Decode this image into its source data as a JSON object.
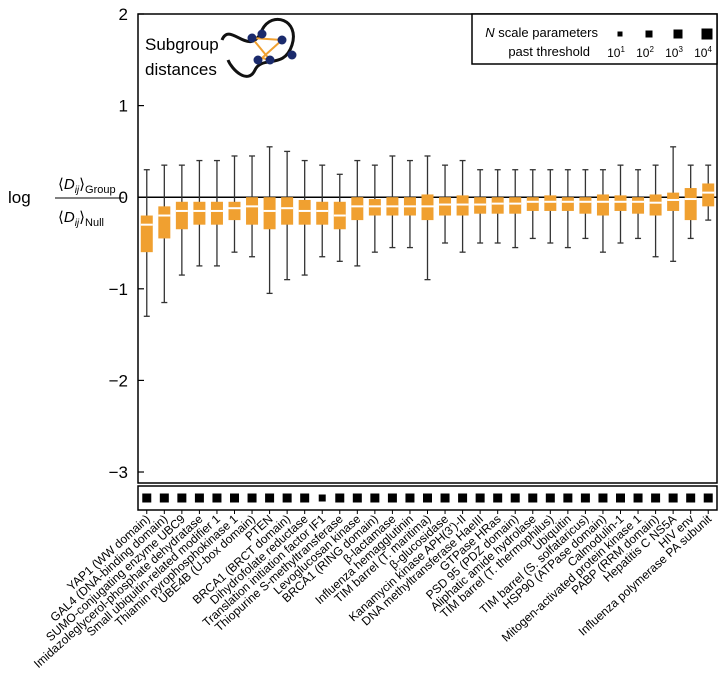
{
  "chart_data": {
    "type": "box",
    "categories": [
      "YAP1 (WW domain)",
      "GAL4 (DNA-binding domain)",
      "SUMO-conjugating enzyme UBC9",
      "Imidazoleglycerol-phosphate dehydratase",
      "Small ubiquitin-related modifier 1",
      "Thiamin pyrophosphokinase 1",
      "UBE4B (U-box domain)",
      "PTEN",
      "BRCA1 (BRCT domain)",
      "Dihydrofolate reductase",
      "Translation initiation factor IF1",
      "Thiopurine S-methyltransferase",
      "Levoglucosan kinase",
      "BRCA1 (RING domain)",
      "β-lactamase",
      "Influenza hemagglutinin",
      "TIM barrel (T. maritima)",
      "β-glucosidase",
      "Kanamycin kinase APH(3')-II",
      "DNA methyltransferase HaeIII",
      "GTPase HRas",
      "PSD 95 (PDZ domain)",
      "Aliphatic amide hydrolase",
      "TIM barrel (T. thermophilus)",
      "Ubiquitin",
      "TIM barrel (S. solfataricus)",
      "HSP90 (ATPase domain)",
      "Calmodulin-1",
      "Mitogen-activated protein kinase 1",
      "PABP (RRM domain)",
      "Hepatitis C NS5A",
      "HIV env",
      "Influenza polymerase PA subunit"
    ],
    "whisker_low": [
      -1.3,
      -1.15,
      -0.85,
      -0.75,
      -0.75,
      -0.6,
      -0.65,
      -1.05,
      -0.9,
      -0.85,
      -0.65,
      -0.7,
      -0.75,
      -0.6,
      -0.55,
      -0.55,
      -0.9,
      -0.5,
      -0.6,
      -0.5,
      -0.5,
      -0.55,
      -0.45,
      -0.5,
      -0.55,
      -0.45,
      -0.6,
      -0.5,
      -0.45,
      -0.65,
      -0.7,
      -0.45,
      -0.25
    ],
    "q1": [
      -0.6,
      -0.45,
      -0.35,
      -0.3,
      -0.3,
      -0.25,
      -0.3,
      -0.35,
      -0.3,
      -0.3,
      -0.3,
      -0.35,
      -0.25,
      -0.2,
      -0.2,
      -0.2,
      -0.25,
      -0.2,
      -0.2,
      -0.18,
      -0.18,
      -0.18,
      -0.15,
      -0.15,
      -0.15,
      -0.18,
      -0.2,
      -0.15,
      -0.18,
      -0.2,
      -0.15,
      -0.25,
      -0.1
    ],
    "median": [
      -0.3,
      -0.2,
      -0.15,
      -0.15,
      -0.15,
      -0.12,
      -0.1,
      -0.15,
      -0.12,
      -0.15,
      -0.15,
      -0.2,
      -0.1,
      -0.1,
      -0.1,
      -0.1,
      -0.1,
      -0.08,
      -0.08,
      -0.08,
      -0.07,
      -0.07,
      -0.05,
      -0.05,
      -0.05,
      -0.05,
      -0.05,
      -0.05,
      -0.05,
      -0.06,
      -0.03,
      -0.02,
      0.05
    ],
    "q3": [
      -0.2,
      -0.1,
      -0.05,
      -0.05,
      -0.05,
      -0.05,
      0,
      0,
      0,
      -0.03,
      -0.05,
      -0.05,
      0,
      -0.02,
      0,
      0,
      0.03,
      0,
      0.02,
      0,
      0,
      0,
      0,
      0.02,
      0,
      0,
      0.03,
      0.02,
      0,
      0.03,
      0.05,
      0.1,
      0.15
    ],
    "whisker_high": [
      0.3,
      0.35,
      0.35,
      0.4,
      0.4,
      0.45,
      0.45,
      0.55,
      0.5,
      0.4,
      0.35,
      0.25,
      0.4,
      0.35,
      0.45,
      0.4,
      0.45,
      0.35,
      0.4,
      0.3,
      0.3,
      0.3,
      0.3,
      0.3,
      0.3,
      0.3,
      0.3,
      0.35,
      0.3,
      0.35,
      0.55,
      0.35,
      0.35
    ],
    "n_params": [
      1000,
      1000,
      1000,
      1000,
      1000,
      1000,
      1000,
      1000,
      1000,
      1000,
      100,
      1000,
      1000,
      1000,
      1000,
      1000,
      1000,
      1000,
      1000,
      1000,
      1000,
      1000,
      1000,
      1000,
      1000,
      1000,
      1000,
      1000,
      1000,
      1000,
      1000,
      1000,
      1000
    ],
    "color": "#f0a030",
    "ylim": [
      -3.12,
      2
    ],
    "yticks": [
      {
        "value": -3,
        "label": "−3"
      },
      {
        "value": -2,
        "label": "−2"
      },
      {
        "value": -1,
        "label": "−1"
      },
      0,
      1,
      2
    ],
    "ylabel": {
      "prefix": "log",
      "open": "⟨",
      "symbol": "D",
      "index": "ij",
      "close": "⟩",
      "numerator_sub": "Group",
      "denominator_sub": "Null"
    },
    "annotation": [
      "Subgroup",
      "distances"
    ],
    "size_legend": {
      "variable": "N",
      "title": "scale parameters",
      "subtitle": "past threshold",
      "entries": [
        {
          "value": 10,
          "base": "10",
          "exponent": "1"
        },
        {
          "value": 100,
          "base": "10",
          "exponent": "2"
        },
        {
          "value": 1000,
          "base": "10",
          "exponent": "3"
        },
        {
          "value": 10000,
          "base": "10",
          "exponent": "4"
        }
      ]
    },
    "grid": false
  }
}
